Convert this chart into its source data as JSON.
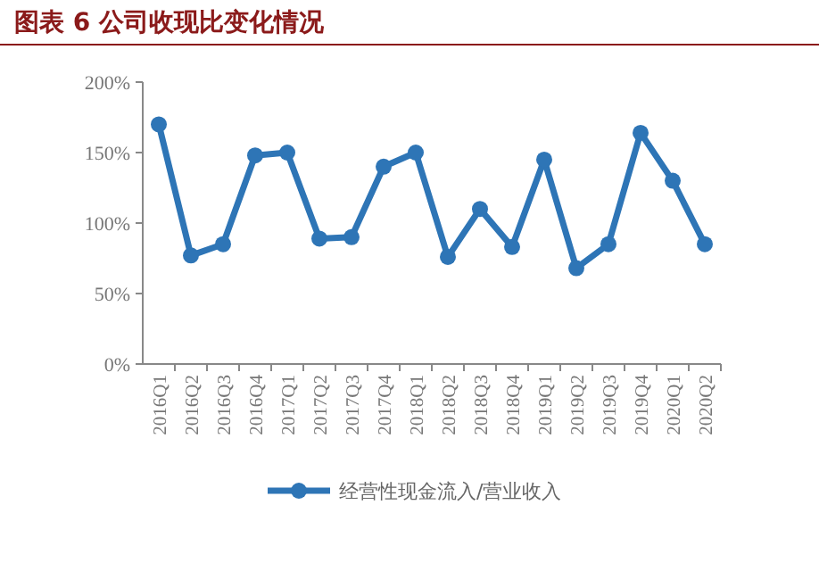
{
  "chart_data": {
    "type": "line",
    "title": "图表 6 公司收现比变化情况",
    "categories": [
      "2016Q1",
      "2016Q2",
      "2016Q3",
      "2016Q4",
      "2017Q1",
      "2017Q2",
      "2017Q3",
      "2017Q4",
      "2018Q1",
      "2018Q2",
      "2018Q3",
      "2018Q4",
      "2019Q1",
      "2019Q2",
      "2019Q3",
      "2019Q4",
      "2020Q1",
      "2020Q2"
    ],
    "series": [
      {
        "name": "经营性现金流入/营业收入",
        "color": "#2e75b6",
        "values": [
          170,
          77,
          85,
          148,
          150,
          89,
          90,
          140,
          150,
          76,
          110,
          83,
          145,
          68,
          85,
          164,
          130,
          85
        ]
      }
    ],
    "ylim": [
      0,
      200
    ],
    "yticks": [
      {
        "value": 0,
        "label": "0%"
      },
      {
        "value": 50,
        "label": "50%"
      },
      {
        "value": 100,
        "label": "100%"
      },
      {
        "value": 150,
        "label": "150%"
      },
      {
        "value": 200,
        "label": "200%"
      }
    ],
    "grid": false,
    "legend": "bottom",
    "marker": "circle",
    "line_style": "solid"
  }
}
